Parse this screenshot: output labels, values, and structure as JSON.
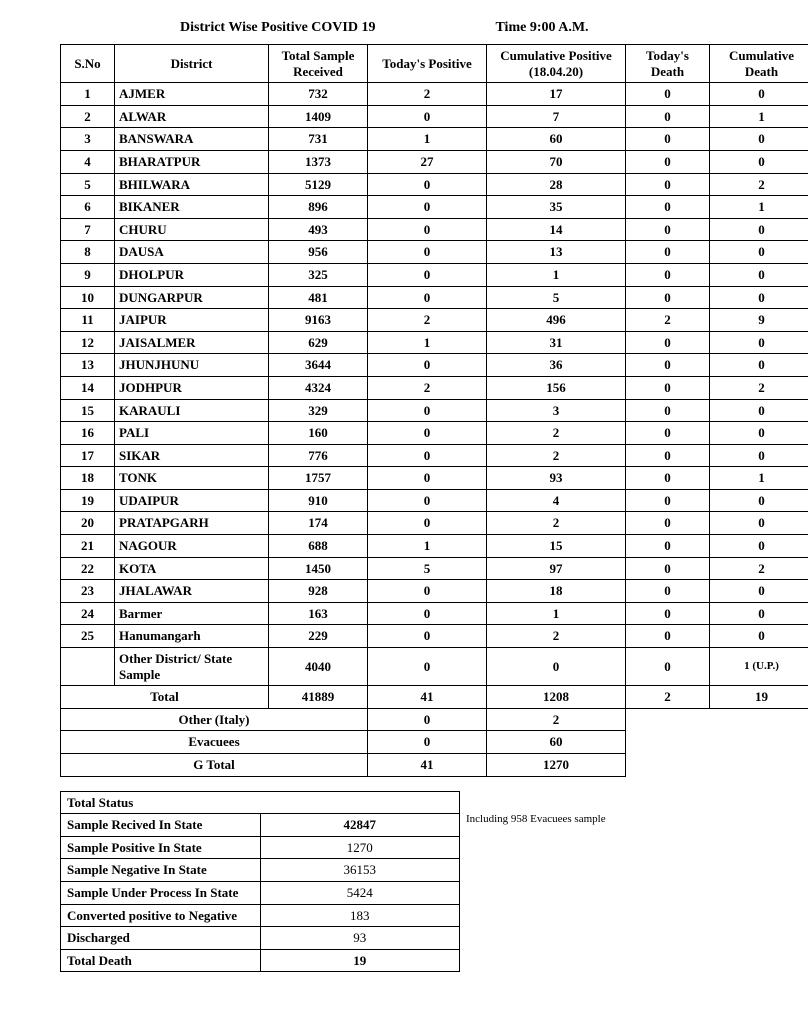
{
  "header": {
    "title": "District Wise Positive COVID 19",
    "time_label": "Time 9:00  A.M."
  },
  "columns": {
    "sno": "S.No",
    "district": "District",
    "sample": "Total Sample Received",
    "today": "Today's Positive",
    "cum": "Cumulative Positive (18.04.20)",
    "tdeath": "Today's Death",
    "cdeath": "Cumulative Death"
  },
  "rows": [
    {
      "sno": "1",
      "d": "AJMER",
      "s": "732",
      "t": "2",
      "c": "17",
      "td": "0",
      "cd": "0"
    },
    {
      "sno": "2",
      "d": "ALWAR",
      "s": "1409",
      "t": "0",
      "c": "7",
      "td": "0",
      "cd": "1"
    },
    {
      "sno": "3",
      "d": "BANSWARA",
      "s": "731",
      "t": "1",
      "c": "60",
      "td": "0",
      "cd": "0"
    },
    {
      "sno": "4",
      "d": "BHARATPUR",
      "s": "1373",
      "t": "27",
      "c": "70",
      "td": "0",
      "cd": "0"
    },
    {
      "sno": "5",
      "d": "BHILWARA",
      "s": "5129",
      "t": "0",
      "c": "28",
      "td": "0",
      "cd": "2"
    },
    {
      "sno": "6",
      "d": "BIKANER",
      "s": "896",
      "t": "0",
      "c": "35",
      "td": "0",
      "cd": "1"
    },
    {
      "sno": "7",
      "d": "CHURU",
      "s": "493",
      "t": "0",
      "c": "14",
      "td": "0",
      "cd": "0"
    },
    {
      "sno": "8",
      "d": "DAUSA",
      "s": "956",
      "t": "0",
      "c": "13",
      "td": "0",
      "cd": "0"
    },
    {
      "sno": "9",
      "d": "DHOLPUR",
      "s": "325",
      "t": "0",
      "c": "1",
      "td": "0",
      "cd": "0"
    },
    {
      "sno": "10",
      "d": "DUNGARPUR",
      "s": "481",
      "t": "0",
      "c": "5",
      "td": "0",
      "cd": "0"
    },
    {
      "sno": "11",
      "d": "JAIPUR",
      "s": "9163",
      "t": "2",
      "c": "496",
      "td": "2",
      "cd": "9"
    },
    {
      "sno": "12",
      "d": "JAISALMER",
      "s": "629",
      "t": "1",
      "c": "31",
      "td": "0",
      "cd": "0"
    },
    {
      "sno": "13",
      "d": "JHUNJHUNU",
      "s": "3644",
      "t": "0",
      "c": "36",
      "td": "0",
      "cd": "0"
    },
    {
      "sno": "14",
      "d": "JODHPUR",
      "s": "4324",
      "t": "2",
      "c": "156",
      "td": "0",
      "cd": "2"
    },
    {
      "sno": "15",
      "d": "KARAULI",
      "s": "329",
      "t": "0",
      "c": "3",
      "td": "0",
      "cd": "0"
    },
    {
      "sno": "16",
      "d": "PALI",
      "s": "160",
      "t": "0",
      "c": "2",
      "td": "0",
      "cd": "0"
    },
    {
      "sno": "17",
      "d": "SIKAR",
      "s": "776",
      "t": "0",
      "c": "2",
      "td": "0",
      "cd": "0"
    },
    {
      "sno": "18",
      "d": "TONK",
      "s": "1757",
      "t": "0",
      "c": "93",
      "td": "0",
      "cd": "1"
    },
    {
      "sno": "19",
      "d": "UDAIPUR",
      "s": "910",
      "t": "0",
      "c": "4",
      "td": "0",
      "cd": "0"
    },
    {
      "sno": "20",
      "d": "PRATAPGARH",
      "s": "174",
      "t": "0",
      "c": "2",
      "td": "0",
      "cd": "0"
    },
    {
      "sno": "21",
      "d": "NAGOUR",
      "s": "688",
      "t": "1",
      "c": "15",
      "td": "0",
      "cd": "0"
    },
    {
      "sno": "22",
      "d": "KOTA",
      "s": "1450",
      "t": "5",
      "c": "97",
      "td": "0",
      "cd": "2"
    },
    {
      "sno": "23",
      "d": "JHALAWAR",
      "s": "928",
      "t": "0",
      "c": "18",
      "td": "0",
      "cd": "0"
    },
    {
      "sno": "24",
      "d": "Barmer",
      "s": "163",
      "t": "0",
      "c": "1",
      "td": "0",
      "cd": "0"
    },
    {
      "sno": "25",
      "d": "Hanumangarh",
      "s": "229",
      "t": "0",
      "c": "2",
      "td": "0",
      "cd": "0"
    }
  ],
  "other_sample": {
    "label": "Other District/ State Sample",
    "s": "4040",
    "t": "0",
    "c": "0",
    "td": "0",
    "cd": "1 (U.P.)"
  },
  "total": {
    "label": "Total",
    "s": "41889",
    "t": "41",
    "c": "1208",
    "td": "2",
    "cd": "19"
  },
  "other_italy": {
    "label": "Other (Italy)",
    "t": "0",
    "c": "2"
  },
  "evacuees": {
    "label": "Evacuees",
    "t": "0",
    "c": "60"
  },
  "g_total": {
    "label": "G Total",
    "t": "41",
    "c": "1270"
  },
  "status_header": "Total Status",
  "status": [
    {
      "label": "Sample Recived In State",
      "val": "42847",
      "note": "Including 958 Evacuees sample"
    },
    {
      "label": "Sample Positive In State",
      "val": "1270"
    },
    {
      "label": "Sample Negative In State",
      "val": "36153"
    },
    {
      "label": "Sample Under Process In State",
      "val": "5424"
    },
    {
      "label": "Converted positive to Negative",
      "val": "183"
    },
    {
      "label": "Discharged",
      "val": "93"
    },
    {
      "label": "Total Death",
      "val": "19"
    }
  ]
}
